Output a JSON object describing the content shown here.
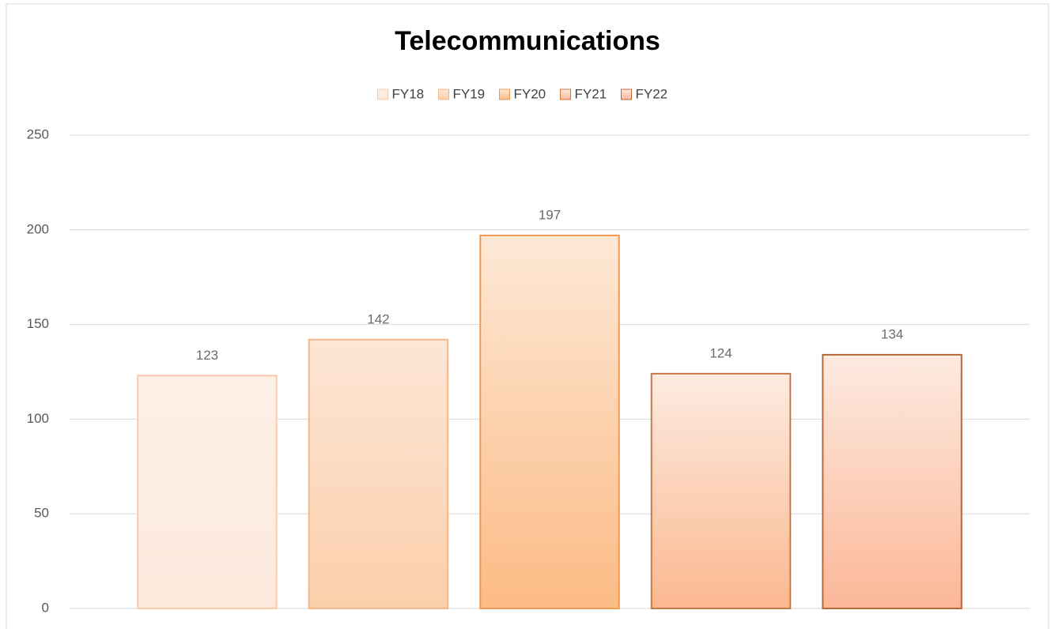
{
  "chart_data": {
    "type": "bar",
    "title": "Telecommunications",
    "categories": [
      null
    ],
    "series": [
      {
        "name": "FY18",
        "color": "#f8cbad",
        "fill": [
          "#fdf0e7",
          "#fde9dc"
        ],
        "values": [
          123
        ]
      },
      {
        "name": "FY19",
        "color": "#f5b88b",
        "fill": [
          "#fde6d6",
          "#fbcfab"
        ],
        "values": [
          142
        ]
      },
      {
        "name": "FY20",
        "color": "#ee9a55",
        "fill": [
          "#fde8d6",
          "#fcbb85"
        ],
        "values": [
          197
        ]
      },
      {
        "name": "FY21",
        "color": "#c97a44",
        "fill": [
          "#fdebe1",
          "#fbb890"
        ],
        "values": [
          124
        ]
      },
      {
        "name": "FY22",
        "color": "#b86a3a",
        "fill": [
          "#fdeae0",
          "#fbb798"
        ],
        "values": [
          134
        ]
      }
    ],
    "ylim": [
      0,
      250
    ],
    "yticks": [
      0,
      50,
      100,
      150,
      200,
      250
    ],
    "grid": true,
    "legend": "top"
  }
}
